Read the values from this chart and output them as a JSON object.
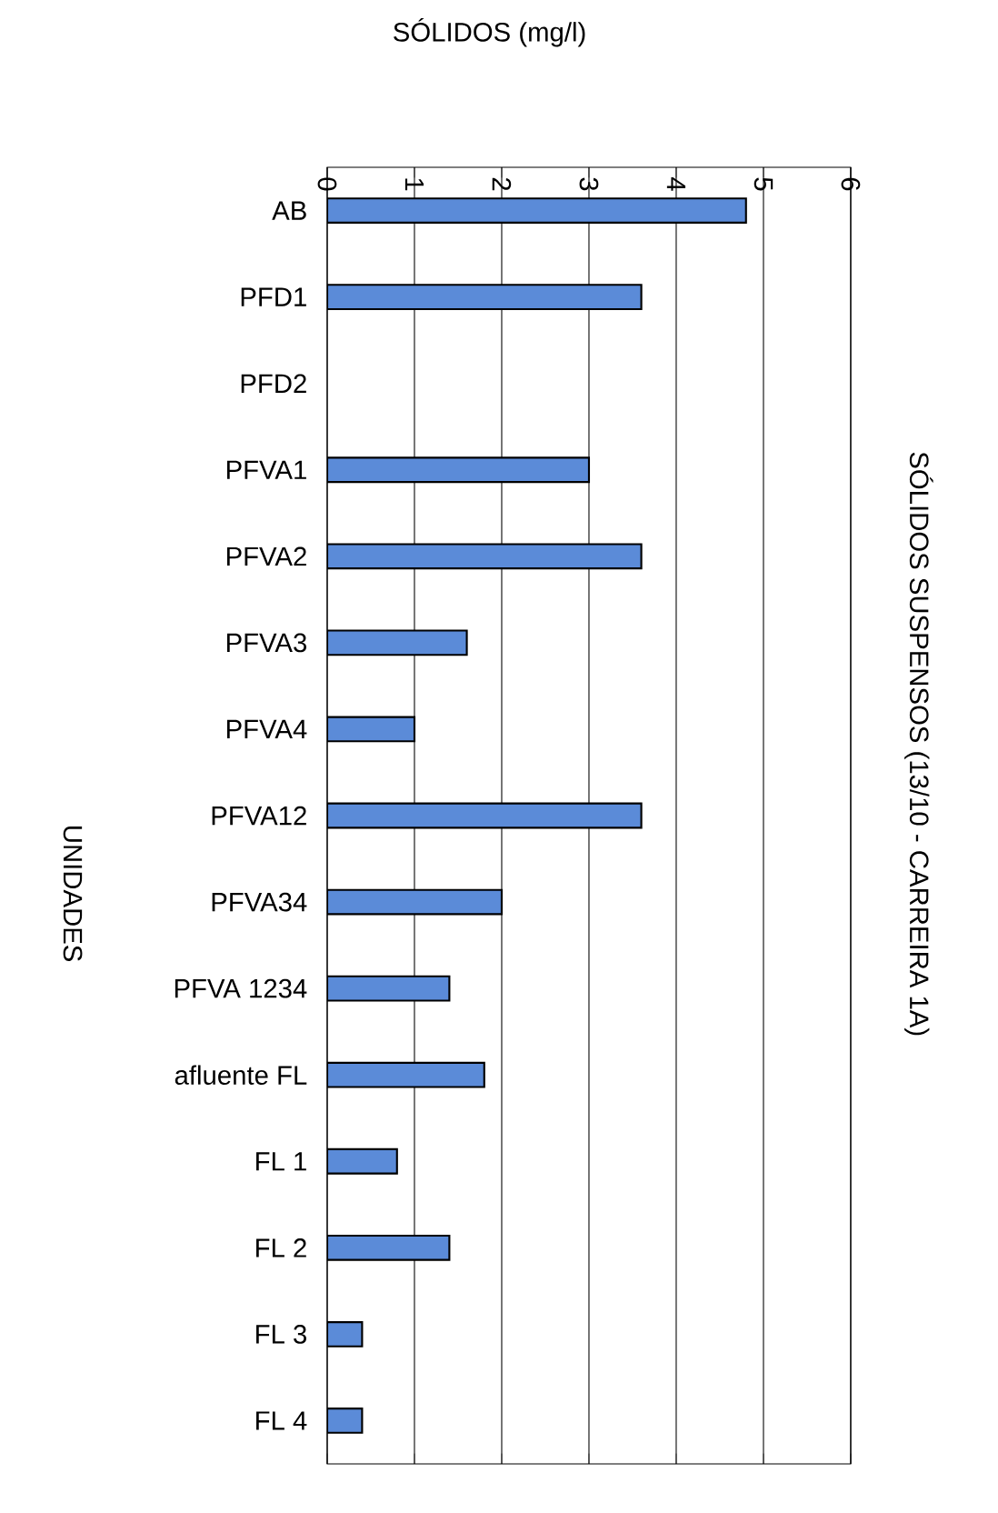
{
  "chart_data": {
    "type": "bar",
    "orientation": "horizontal",
    "title": "SÓLIDOS SUSPENSOS  (13/10 - CARREIRA 1A)",
    "xlabel": "SÓLIDOS (mg/l)",
    "ylabel": "UNIDADES",
    "categories": [
      "AB",
      "PFD1",
      "PFD2",
      "PFVA1",
      "PFVA2",
      "PFVA3",
      "PFVA4",
      "PFVA12",
      "PFVA34",
      "PFVA 1234",
      "afluente FL",
      "FL 1",
      "FL 2",
      "FL 3",
      "FL 4"
    ],
    "values": [
      4.8,
      3.6,
      null,
      3.0,
      3.6,
      1.6,
      1.0,
      3.6,
      2.0,
      1.4,
      1.8,
      0.8,
      1.4,
      0.4,
      0.4
    ],
    "color": "#5b8bd8",
    "xlim": [
      0,
      6
    ],
    "xticks": [
      0,
      1,
      2,
      3,
      4,
      5,
      6
    ],
    "grid": "x"
  }
}
